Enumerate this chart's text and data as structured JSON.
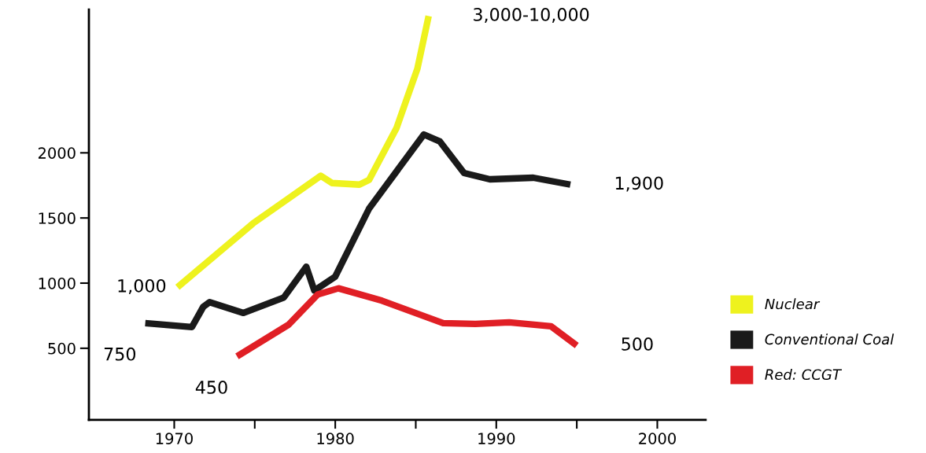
{
  "chart_data": {
    "type": "line",
    "xlim": [
      1964.7,
      2003
    ],
    "xticks": [
      1970,
      {
        "value": 1975,
        "label": null
      },
      1980,
      {
        "value": 1985,
        "label": null
      },
      1990,
      {
        "value": 1995,
        "label": null
      },
      2000
    ],
    "ylim": [
      -50,
      3100
    ],
    "yticks": [
      500,
      1000,
      1500,
      2000
    ],
    "grid": false,
    "legend": "right",
    "marker": "none",
    "line_style": "solid",
    "series": [
      {
        "name": "Nuclear",
        "color": "#eef21e",
        "x": [
          1970.2,
          1974.9,
          1979.1,
          1979.8,
          1981.5,
          1982.1,
          1983.8,
          1985.1,
          1985.8
        ],
        "values": [
          968,
          1459,
          1824,
          1768,
          1756,
          1792,
          2189,
          2646,
          3050
        ]
      },
      {
        "name": "Conventional Coal",
        "color": "#1a1a1a",
        "x": [
          1968.2,
          1971.1,
          1971.8,
          1972.2,
          1974.3,
          1976.8,
          1978.2,
          1978.7,
          1980.0,
          1982.1,
          1983.2,
          1985.5,
          1986.5,
          1988.0,
          1989.6,
          1992.3,
          1994.6
        ],
        "values": [
          693,
          663,
          818,
          854,
          771,
          889,
          1126,
          943,
          1050,
          1572,
          1756,
          2141,
          2087,
          1845,
          1797,
          1809,
          1756
        ]
      },
      {
        "name": "Red: CCGT",
        "color": "#e01f25",
        "x": [
          1973.9,
          1977.1,
          1978.9,
          1980.2,
          1982.9,
          1986.7,
          1988.7,
          1990.8,
          1993.4,
          1995.0
        ],
        "values": [
          438,
          681,
          912,
          960,
          865,
          693,
          687,
          699,
          669,
          521
        ]
      }
    ],
    "annotations": [
      {
        "text": "3,000-10,000",
        "x": 1985.8,
        "y": 3050
      },
      {
        "text": "1,900",
        "x": 1994.6,
        "y": 1756
      },
      {
        "text": "1,000",
        "x": 1970.2,
        "y": 968
      },
      {
        "text": "750",
        "x": 1968.2,
        "y": 693
      },
      {
        "text": "450",
        "x": 1973.9,
        "y": 438
      },
      {
        "text": "500",
        "x": 1995.0,
        "y": 521
      }
    ]
  }
}
